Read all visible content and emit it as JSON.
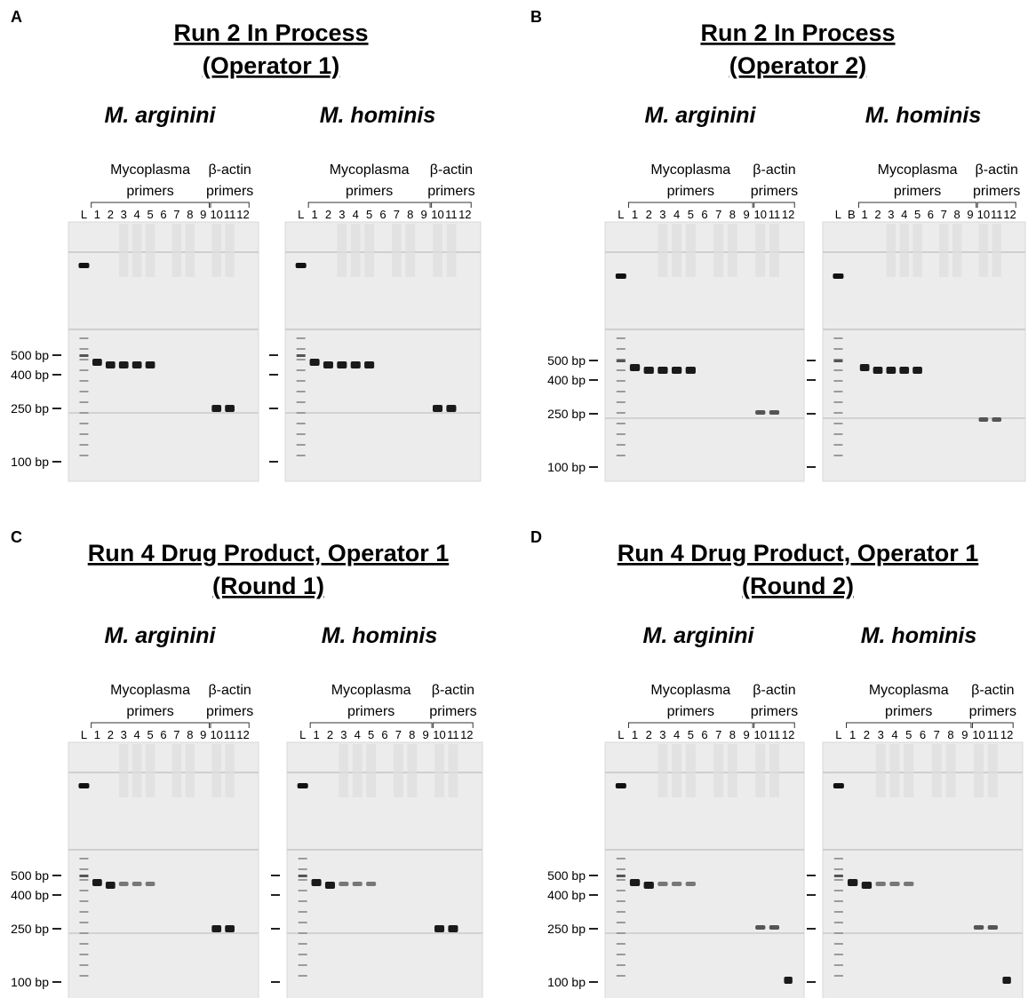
{
  "panels": [
    {
      "letter": "A",
      "title_lines": [
        "Run 2 In Process",
        "(Operator 1)"
      ],
      "gels": [
        {
          "species": "M. arginini",
          "group_primer_label": [
            "Mycoplasma",
            "primers"
          ],
          "group_actin_label": [
            "β-actin",
            "primers"
          ],
          "lanes": [
            "L",
            "1",
            "2",
            "3",
            "4",
            "5",
            "6",
            "7",
            "8",
            "9",
            "10",
            "11",
            "12"
          ],
          "marker_labels": [
            "500 bp",
            "400 bp",
            "250 bp",
            "100 bp"
          ],
          "band_lanes": [
            "1",
            "2",
            "3",
            "4",
            "5",
            "10",
            "11"
          ]
        },
        {
          "species": "M. hominis",
          "group_primer_label": [
            "Mycoplasma",
            "primers"
          ],
          "group_actin_label": [
            "β-actin",
            "primers"
          ],
          "lanes": [
            "L",
            "1",
            "2",
            "3",
            "4",
            "5",
            "6",
            "7",
            "8",
            "9",
            "10",
            "11",
            "12"
          ],
          "marker_labels": [],
          "band_lanes": [
            "1",
            "2",
            "3",
            "4",
            "5",
            "10",
            "11"
          ]
        }
      ]
    },
    {
      "letter": "B",
      "title_lines": [
        "Run 2 In Process",
        "(Operator 2)"
      ],
      "gels": [
        {
          "species": "M. arginini",
          "group_primer_label": [
            "Mycoplasma",
            "primers"
          ],
          "group_actin_label": [
            "β-actin",
            "primers"
          ],
          "lanes": [
            "L",
            "1",
            "2",
            "3",
            "4",
            "5",
            "6",
            "7",
            "8",
            "9",
            "10",
            "11",
            "12"
          ],
          "marker_labels": [
            "500 bp",
            "400 bp",
            "250 bp",
            "100 bp"
          ],
          "band_lanes": [
            "1",
            "2",
            "3",
            "4",
            "5",
            "10",
            "11"
          ]
        },
        {
          "species": "M. hominis",
          "group_primer_label": [
            "Mycoplasma",
            "primers"
          ],
          "group_actin_label": [
            "β-actin",
            "primers"
          ],
          "lanes": [
            "L",
            "B",
            "1",
            "2",
            "3",
            "4",
            "5",
            "6",
            "7",
            "8",
            "9",
            "10",
            "11",
            "12"
          ],
          "marker_labels": [],
          "band_lanes": [
            "1",
            "2",
            "3",
            "4",
            "5",
            "10",
            "11"
          ]
        }
      ]
    },
    {
      "letter": "C",
      "title_lines": [
        "Run 4 Drug Product, Operator 1",
        "(Round 1)"
      ],
      "gels": [
        {
          "species": "M. arginini",
          "group_primer_label": [
            "Mycoplasma",
            "primers"
          ],
          "group_actin_label": [
            "β-actin",
            "primers"
          ],
          "lanes": [
            "L",
            "1",
            "2",
            "3",
            "4",
            "5",
            "6",
            "7",
            "8",
            "9",
            "10",
            "11",
            "12"
          ],
          "marker_labels": [
            "500 bp",
            "400 bp",
            "250 bp",
            "100 bp"
          ],
          "band_lanes": [
            "1",
            "2",
            "3",
            "4",
            "5",
            "10",
            "11"
          ]
        },
        {
          "species": "M. hominis",
          "group_primer_label": [
            "Mycoplasma",
            "primers"
          ],
          "group_actin_label": [
            "β-actin",
            "primers"
          ],
          "lanes": [
            "L",
            "1",
            "2",
            "3",
            "4",
            "5",
            "6",
            "7",
            "8",
            "9",
            "10",
            "11",
            "12"
          ],
          "marker_labels": [],
          "band_lanes": [
            "1",
            "2",
            "3",
            "4",
            "5",
            "10",
            "11"
          ]
        }
      ]
    },
    {
      "letter": "D",
      "title_lines": [
        "Run 4 Drug Product, Operator 1",
        "(Round 2)"
      ],
      "gels": [
        {
          "species": "M. arginini",
          "group_primer_label": [
            "Mycoplasma",
            "primers"
          ],
          "group_actin_label": [
            "β-actin",
            "primers"
          ],
          "lanes": [
            "L",
            "1",
            "2",
            "3",
            "4",
            "5",
            "6",
            "7",
            "8",
            "9",
            "10",
            "11",
            "12"
          ],
          "marker_labels": [
            "500 bp",
            "400 bp",
            "250 bp",
            "100 bp"
          ],
          "band_lanes": [
            "1",
            "2",
            "3",
            "4",
            "5",
            "10",
            "11",
            "12"
          ]
        },
        {
          "species": "M. hominis",
          "group_primer_label": [
            "Mycoplasma",
            "primers"
          ],
          "group_actin_label": [
            "β-actin",
            "primers"
          ],
          "lanes": [
            "L",
            "1",
            "2",
            "3",
            "4",
            "5",
            "6",
            "7",
            "8",
            "9",
            "10",
            "11",
            "12"
          ],
          "marker_labels": [],
          "band_lanes": [
            "1",
            "2",
            "3",
            "4",
            "5",
            "10",
            "11",
            "12"
          ]
        }
      ]
    }
  ]
}
